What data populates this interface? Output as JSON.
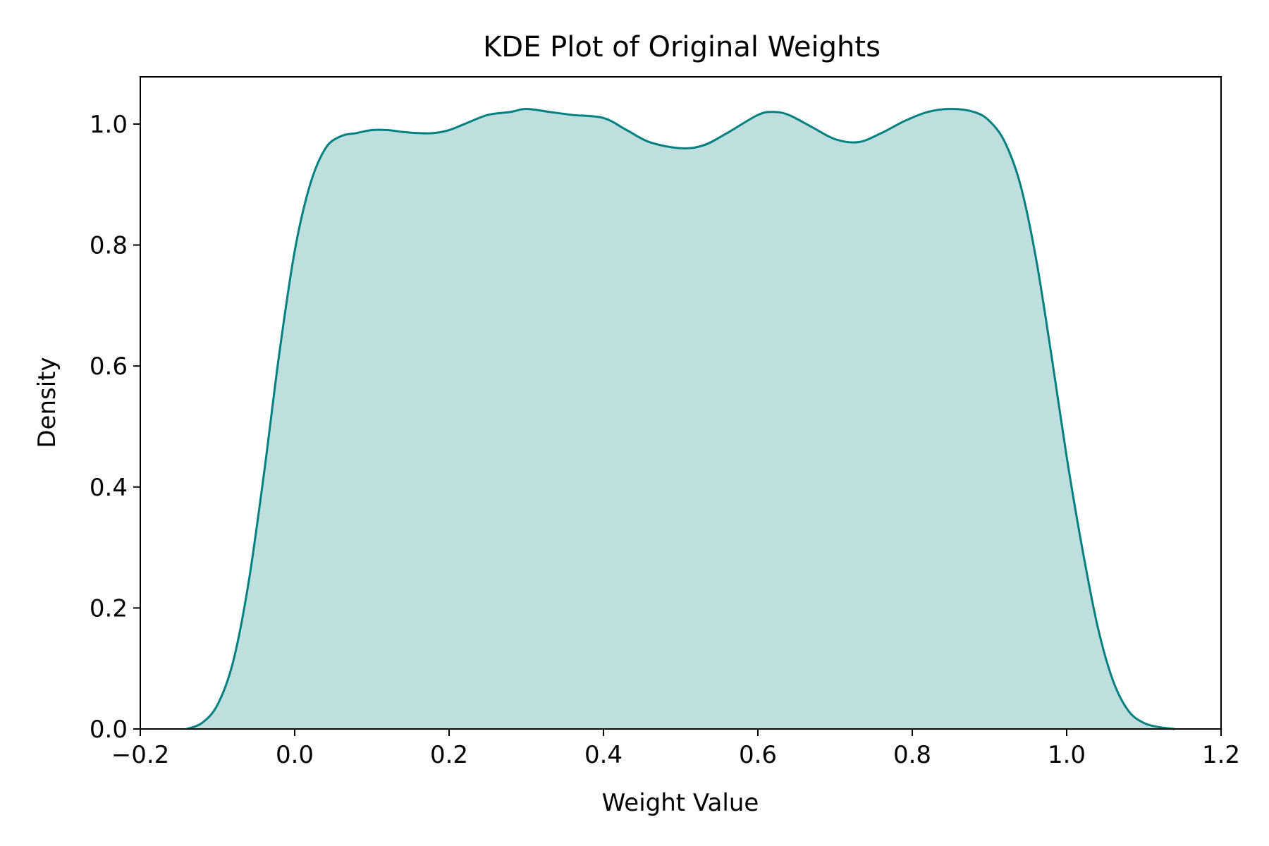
{
  "chart_data": {
    "type": "area",
    "title": "KDE Plot of Original Weights",
    "xlabel": "Weight Value",
    "ylabel": "Density",
    "xlim": [
      -0.2,
      1.2
    ],
    "ylim": [
      0,
      1.078
    ],
    "x_ticks": [
      -0.2,
      0.0,
      0.2,
      0.4,
      0.6,
      0.8,
      1.0,
      1.2
    ],
    "x_tick_labels": [
      "−0.2",
      "0.0",
      "0.2",
      "0.4",
      "0.6",
      "0.8",
      "1.0",
      "1.2"
    ],
    "y_ticks": [
      0.0,
      0.2,
      0.4,
      0.6,
      0.8,
      1.0
    ],
    "y_tick_labels": [
      "0.0",
      "0.2",
      "0.4",
      "0.6",
      "0.8",
      "1.0"
    ],
    "grid": false,
    "colors": {
      "line": "#008080",
      "fill": "#008080",
      "fill_opacity": 0.25
    },
    "series": [
      {
        "x": [
          -0.14,
          -0.12,
          -0.1,
          -0.08,
          -0.06,
          -0.04,
          -0.02,
          0.0,
          0.02,
          0.04,
          0.06,
          0.08,
          0.1,
          0.12,
          0.14,
          0.16,
          0.18,
          0.2,
          0.22,
          0.25,
          0.28,
          0.3,
          0.33,
          0.36,
          0.4,
          0.43,
          0.46,
          0.5,
          0.53,
          0.56,
          0.6,
          0.62,
          0.64,
          0.67,
          0.7,
          0.73,
          0.76,
          0.79,
          0.82,
          0.85,
          0.88,
          0.9,
          0.92,
          0.94,
          0.96,
          0.98,
          1.0,
          1.02,
          1.04,
          1.06,
          1.08,
          1.1,
          1.12,
          1.14
        ],
        "y": [
          0.0,
          0.01,
          0.04,
          0.11,
          0.24,
          0.42,
          0.62,
          0.79,
          0.9,
          0.96,
          0.98,
          0.985,
          0.99,
          0.99,
          0.987,
          0.985,
          0.985,
          0.99,
          1.0,
          1.015,
          1.02,
          1.025,
          1.02,
          1.015,
          1.01,
          0.99,
          0.97,
          0.96,
          0.965,
          0.985,
          1.015,
          1.02,
          1.015,
          0.995,
          0.975,
          0.97,
          0.985,
          1.005,
          1.02,
          1.025,
          1.02,
          1.005,
          0.97,
          0.9,
          0.78,
          0.62,
          0.45,
          0.3,
          0.17,
          0.08,
          0.03,
          0.01,
          0.003,
          0.0
        ]
      }
    ]
  }
}
